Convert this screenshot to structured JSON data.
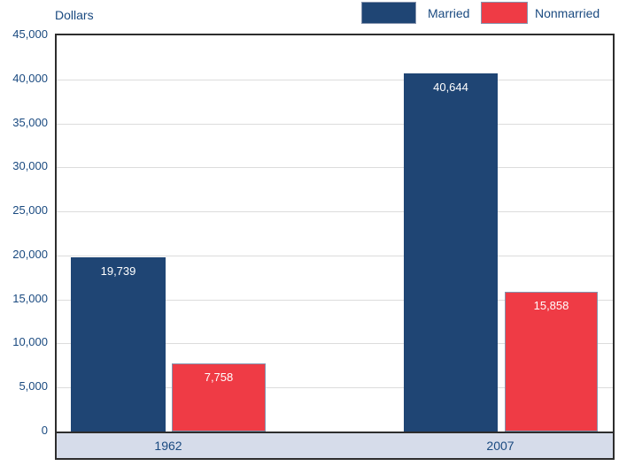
{
  "chart_data": {
    "type": "bar",
    "title": "",
    "ylabel": "Dollars",
    "categories": [
      "1962",
      "2007"
    ],
    "series": [
      {
        "name": "Married",
        "color": "#1f4574",
        "border_color": "#1f4574",
        "values": [
          19739,
          40644
        ],
        "labels": [
          "19,739",
          "40,644"
        ]
      },
      {
        "name": "Nonmarried",
        "color": "#ef3b45",
        "border_color": "#8593ad",
        "values": [
          7758,
          15858
        ],
        "labels": [
          "7,758",
          "15,858"
        ]
      }
    ],
    "ylim": [
      0,
      45000
    ],
    "ytick_interval": 5000,
    "yticks": [
      "45,000",
      "40,000",
      "35,000",
      "30,000",
      "25,000",
      "20,000",
      "15,000",
      "10,000",
      "5,000",
      "0"
    ],
    "grid": true,
    "legend_position": "top-right",
    "colors": {
      "axis_text": "#1a4a80",
      "grid": "#dcdcdc",
      "frame": "#2d2d2d",
      "band_fill": "#d6dcea",
      "value_label": "#ffffff",
      "swatch_border": "#8593ad",
      "background": "#ffffff"
    }
  }
}
